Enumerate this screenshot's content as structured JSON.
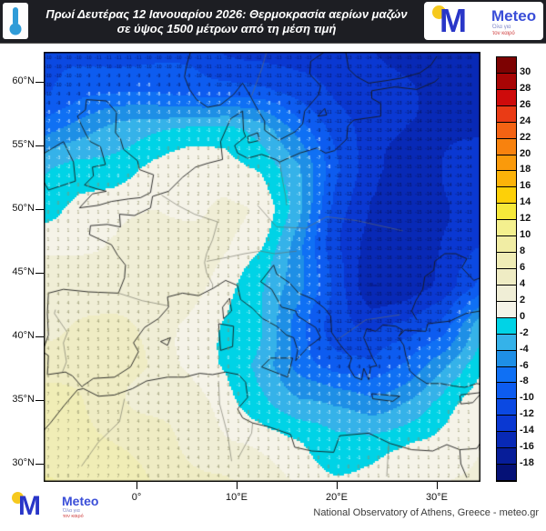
{
  "header": {
    "title_line1": "Πρωί Δευτέρας 12 Ιανουαρίου 2026: Θερμοκρασία αερίων μαζών",
    "title_line2": "σε ύψος 1500 μέτρων από τη μέση τιμή"
  },
  "brand": {
    "logo_letter": "M",
    "name": "Meteo",
    "tagline_line1": "Όλα για",
    "tagline_line2": "τον καιρό"
  },
  "footer": {
    "attribution": "National Observatory of Athens, Greece - meteo.gr"
  },
  "axes": {
    "lat_labels": [
      {
        "text": "60°N",
        "lat": 60
      },
      {
        "text": "55°N",
        "lat": 55
      },
      {
        "text": "50°N",
        "lat": 50
      },
      {
        "text": "45°N",
        "lat": 45
      },
      {
        "text": "40°N",
        "lat": 40
      },
      {
        "text": "35°N",
        "lat": 35
      },
      {
        "text": "30°N",
        "lat": 30
      }
    ],
    "lon_labels": [
      {
        "text": "0°",
        "lon": 0
      },
      {
        "text": "10°E",
        "lon": 10
      },
      {
        "text": "20°E",
        "lon": 20
      },
      {
        "text": "30°E",
        "lon": 30
      }
    ]
  },
  "colorbar": {
    "tick_labels": [
      "30",
      "28",
      "26",
      "24",
      "22",
      "20",
      "18",
      "16",
      "14",
      "12",
      "10",
      "8",
      "6",
      "4",
      "2",
      "0",
      "-2",
      "-4",
      "-6",
      "-8",
      "-10",
      "-12",
      "-14",
      "-16",
      "-18"
    ],
    "cell_colors": [
      "#7d0202",
      "#a80505",
      "#ce0b0b",
      "#ea3b15",
      "#f46313",
      "#f8820e",
      "#fa9a0b",
      "#fcb309",
      "#fdd008",
      "#f6e93a",
      "#f4f08e",
      "#f1eda4",
      "#f0edb6",
      "#efecc4",
      "#f0eed6",
      "#f5f3e8",
      "#00d3e6",
      "#35b2e9",
      "#1e8fe6",
      "#0f70f4",
      "#0d5cf0",
      "#0b49e2",
      "#0a38d2",
      "#0829b6",
      "#071d99",
      "#051176"
    ]
  },
  "chart_data": {
    "type": "heatmap",
    "title": "Πρωί Δευτέρας 12 Ιανουαρίου 2026: Θερμοκρασία αερίων μαζών σε ύψος 1500 μέτρων από τη μέση τιμή",
    "variable": "air-mass temperature anomaly at 1500 m (°C) vs mean value",
    "lon_range": [
      -9.3,
      34.4
    ],
    "lat_range": [
      28.5,
      62.4
    ],
    "level_min": -18,
    "level_max": 30,
    "level_step": 2,
    "grid_lons": [
      -9.3,
      -5.6,
      -2.0,
      1.6,
      5.3,
      8.9,
      12.5,
      16.2,
      19.8,
      23.5,
      27.1,
      30.7,
      34.4
    ],
    "grid_lats": [
      62.4,
      59.3,
      56.2,
      53.1,
      50.0,
      47.0,
      43.9,
      40.9,
      37.8,
      34.7,
      31.6,
      28.5
    ],
    "anomaly_values": [
      [
        -11,
        -11,
        -11,
        -11,
        -11,
        -12,
        -12,
        -13,
        -13,
        -14,
        -15,
        -16,
        -16
      ],
      [
        -10,
        -9,
        -9,
        -8,
        -8,
        -9,
        -10,
        -11,
        -12,
        -13,
        -14,
        -15,
        -15
      ],
      [
        -7,
        -5,
        -3,
        -2,
        -1,
        -1,
        -3,
        -7,
        -11,
        -13,
        -14,
        -14,
        -14
      ],
      [
        -3,
        -1,
        0,
        1,
        1,
        1,
        0,
        -4,
        -10,
        -13,
        -14,
        -14,
        -14
      ],
      [
        0,
        1,
        1,
        2,
        2,
        2,
        1,
        -3,
        -10,
        -14,
        -15,
        -14,
        -13
      ],
      [
        2,
        2,
        2,
        3,
        3,
        2,
        0,
        -5,
        -11,
        -15,
        -16,
        -14,
        -12
      ],
      [
        3,
        3,
        3,
        3,
        2,
        1,
        -1,
        -5,
        -11,
        -16,
        -15,
        -14,
        -10
      ],
      [
        4,
        4,
        4,
        3,
        2,
        0,
        -2,
        -7,
        -11,
        -13,
        -12,
        -9,
        -2
      ],
      [
        5,
        5,
        4,
        4,
        2,
        0,
        -3,
        -7,
        -9,
        -10,
        -8,
        -4,
        0
      ],
      [
        6,
        6,
        5,
        4,
        3,
        1,
        -1,
        -4,
        -5,
        -5,
        -3,
        -1,
        1
      ],
      [
        7,
        7,
        6,
        5,
        4,
        2,
        1,
        0,
        -1,
        -1,
        0,
        1,
        2
      ],
      [
        9,
        8,
        7,
        6,
        5,
        4,
        2,
        2,
        1,
        1,
        1,
        2,
        3
      ]
    ]
  }
}
